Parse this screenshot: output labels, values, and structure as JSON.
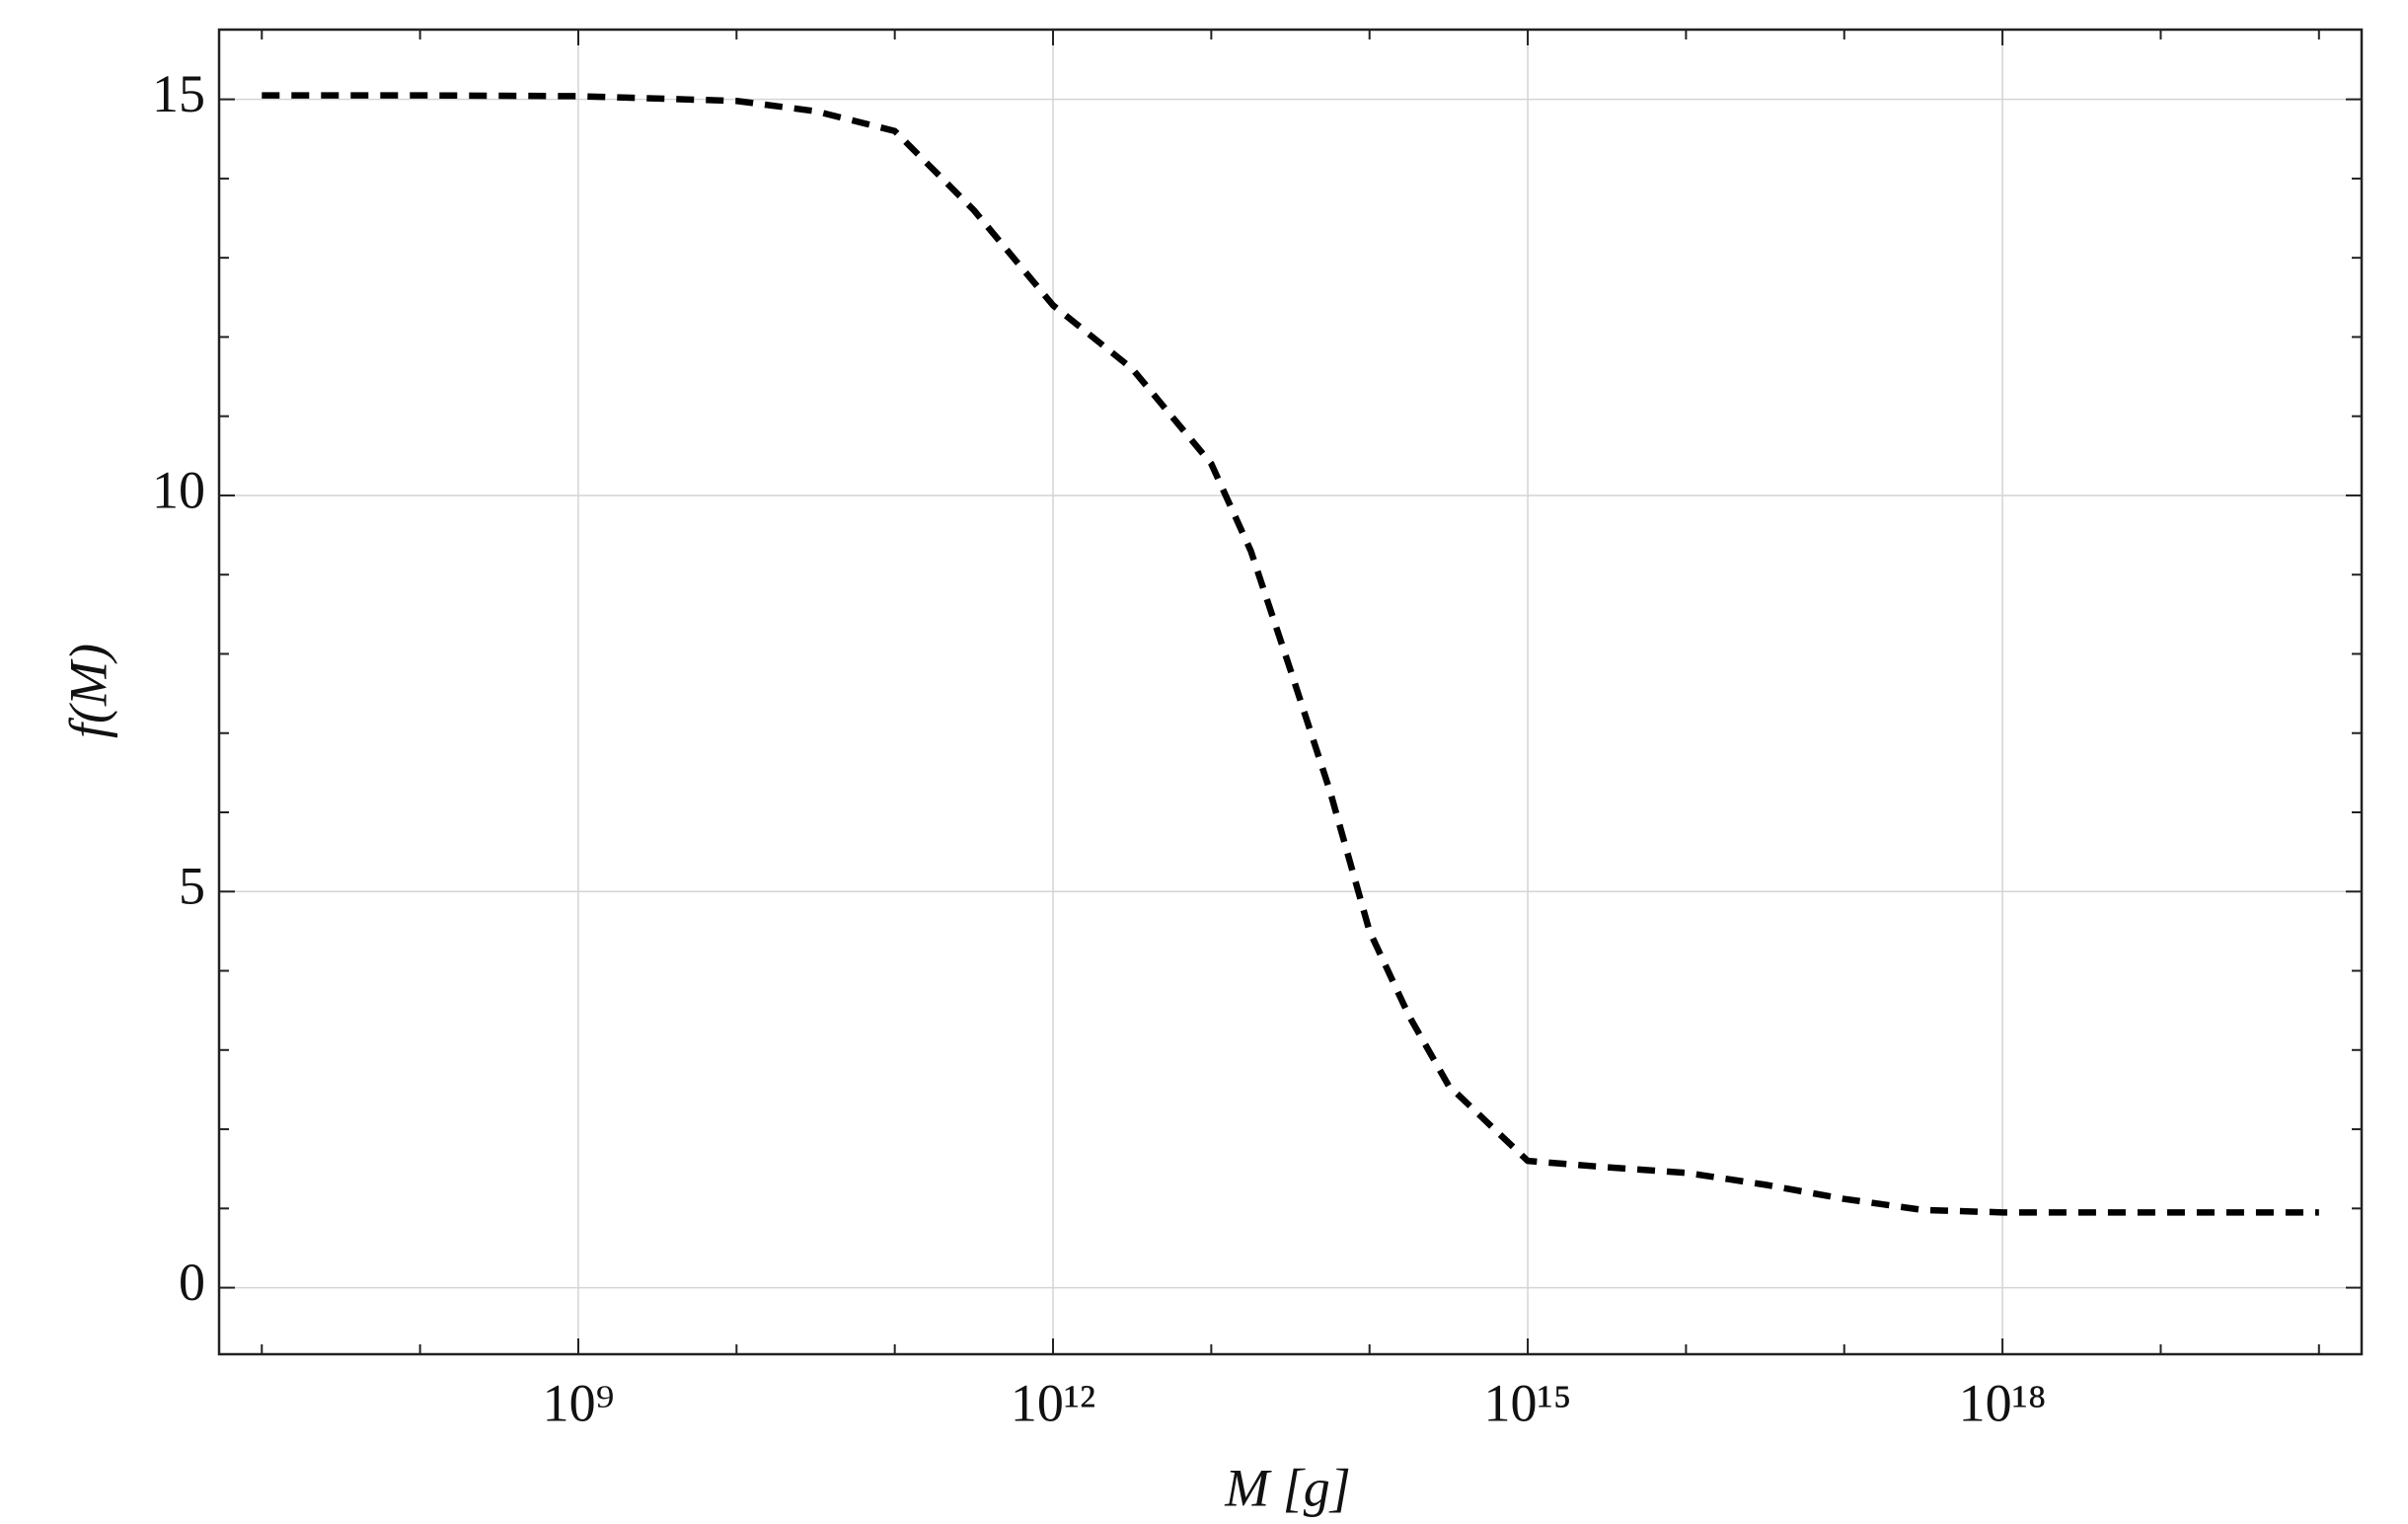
{
  "chart_data": {
    "type": "line",
    "xlabel": "M [g]",
    "ylabel": "f(M)",
    "xscale": "log",
    "grid": true,
    "xlim": [
      5370000.0,
      1.86e+20
    ],
    "ylim": [
      -0.84,
      15.88
    ],
    "xticks": [
      {
        "value": 1000000000.0,
        "label": "10⁹"
      },
      {
        "value": 1000000000000.0,
        "label": "10¹²"
      },
      {
        "value": 1000000000000000.0,
        "label": "10¹⁵"
      },
      {
        "value": 1e+18,
        "label": "10¹⁸"
      }
    ],
    "xminorticks": [
      10000000.0,
      100000000.0,
      10000000000.0,
      100000000000.0,
      10000000000000.0,
      100000000000000.0,
      1e+16,
      1e+17,
      1e+19,
      1e+20
    ],
    "yticks": [
      0,
      5,
      10,
      15
    ],
    "yminorticks": [
      1,
      2,
      3,
      4,
      6,
      7,
      8,
      9,
      11,
      12,
      13,
      14
    ],
    "x": [
      10000000.0,
      100000000.0,
      1000000000.0,
      10000000000.0,
      31620000000.0,
      100000000000.0,
      316200000000.0,
      1000000000000.0,
      3162000000000.0,
      10000000000000.0,
      17780000000000.0,
      31620000000000.0,
      56230000000000.0,
      100000000000000.0,
      177800000000000.0,
      316200000000000.0,
      1000000000000000.0,
      3162000000000000.0,
      1e+16,
      3.162e+16,
      1e+17,
      3.162e+17,
      1e+18,
      1e+19,
      1e+20
    ],
    "series": [
      {
        "color": "#000000",
        "dashed": true,
        "values": [
          15.05,
          15.05,
          15.04,
          14.98,
          14.85,
          14.6,
          13.6,
          12.4,
          11.6,
          10.4,
          9.3,
          7.8,
          6.27,
          4.5,
          3.43,
          2.55,
          1.6,
          1.52,
          1.45,
          1.3,
          1.12,
          0.98,
          0.95,
          0.95,
          0.95
        ]
      }
    ]
  }
}
